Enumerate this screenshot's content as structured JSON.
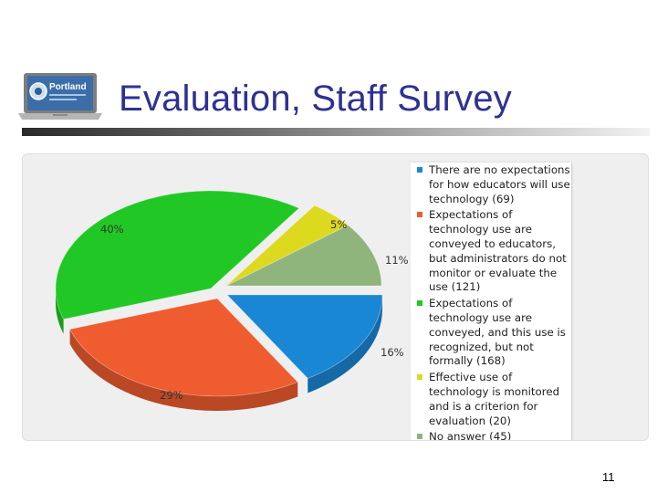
{
  "slide": {
    "title": "Evaluation, Staff Survey",
    "page_number": "11",
    "logo_text": "Portland"
  },
  "colors": {
    "blue": "#1a87d5",
    "orange": "#ee5c30",
    "green": "#21c825",
    "yellow": "#dcd91f",
    "sage": "#8fb47c"
  },
  "chart_data": {
    "type": "pie",
    "slices": [
      {
        "label": "There are no expectations for how educators will use technology (69)",
        "value": 69,
        "percent_label": "16%",
        "color": "#1a87d5"
      },
      {
        "label": "Expectations of technology use are conveyed to educators, but administrators do not monitor or evaluate the use (121)",
        "value": 121,
        "percent_label": "29%",
        "color": "#ee5c30"
      },
      {
        "label": "Expectations of technology use are conveyed, and this use is recognized, but not formally (168)",
        "value": 168,
        "percent_label": "40%",
        "color": "#21c825"
      },
      {
        "label": "Effective use of technology is monitored and is a criterion for evaluation (20)",
        "value": 20,
        "percent_label": "5%",
        "color": "#dcd91f"
      },
      {
        "label": "No answer (45)",
        "value": 45,
        "percent_label": "11%",
        "color": "#8fb47c"
      }
    ],
    "legend_position": "right"
  }
}
